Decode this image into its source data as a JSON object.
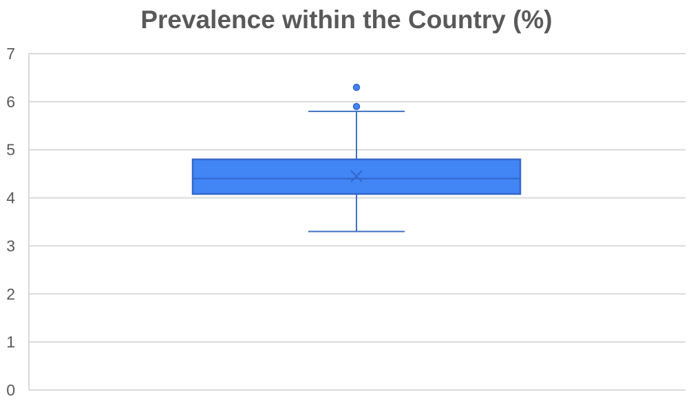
{
  "chart_data": {
    "type": "box",
    "title": "Prevalence within the Country (%)",
    "xlabel": "",
    "ylabel": "",
    "ylim": [
      0,
      7
    ],
    "yticks": [
      "0",
      "1",
      "2",
      "3",
      "4",
      "5",
      "6",
      "7"
    ],
    "grid": true,
    "series": [
      {
        "min": 3.3,
        "q1": 4.08,
        "median": 4.4,
        "q3": 4.8,
        "max": 5.8,
        "mean": 4.45,
        "outliers": [
          5.9,
          6.3
        ]
      }
    ],
    "colors": {
      "box_fill": "#4285f4",
      "box_stroke": "#3366cc",
      "whisker": "#3f6fc0",
      "grid": "#d9d9d9",
      "text": "#595959"
    }
  }
}
